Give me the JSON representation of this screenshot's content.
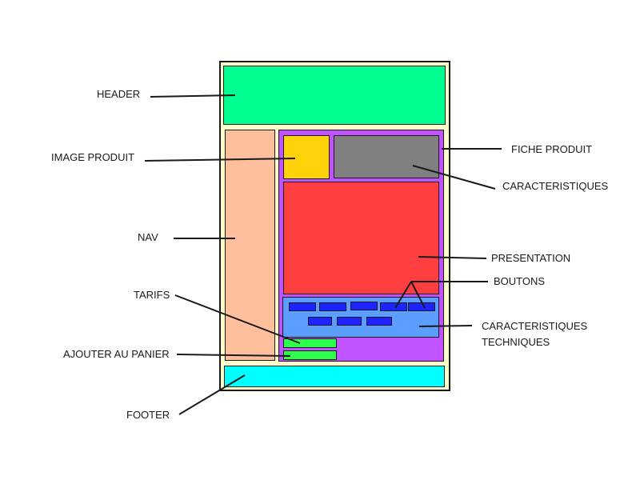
{
  "colors": {
    "page": "#ffffcc",
    "header": "#00ff90",
    "nav": "#ffbe9c",
    "fiche_produit": "#c152ff",
    "image_produit": "#ffd20a",
    "caracteristiques": "#808080",
    "presentation": "#ff3f3f",
    "caracteristiques_techniques": "#5c9eff",
    "boutons": "#1e24ff",
    "tarifs": "#2dff4a",
    "ajouter_au_panier": "#2dff4a",
    "footer": "#00ffff"
  },
  "labels": {
    "header": "HEADER",
    "image_produit": "IMAGE PRODUIT",
    "nav": "NAV",
    "tarifs": "TARIFS",
    "ajouter_au_panier": "AJOUTER AU PANIER",
    "footer": "FOOTER",
    "fiche_produit": "FICHE PRODUIT",
    "caracteristiques": "CARACTERISTIQUES",
    "presentation": "PRESENTATION",
    "boutons": "BOUTONS",
    "caracteristiques_techniques_line1": "CARACTERISTIQUES",
    "caracteristiques_techniques_line2": "TECHNIQUES"
  },
  "buttons": {
    "row1_count": 5,
    "row2_count": 3
  }
}
